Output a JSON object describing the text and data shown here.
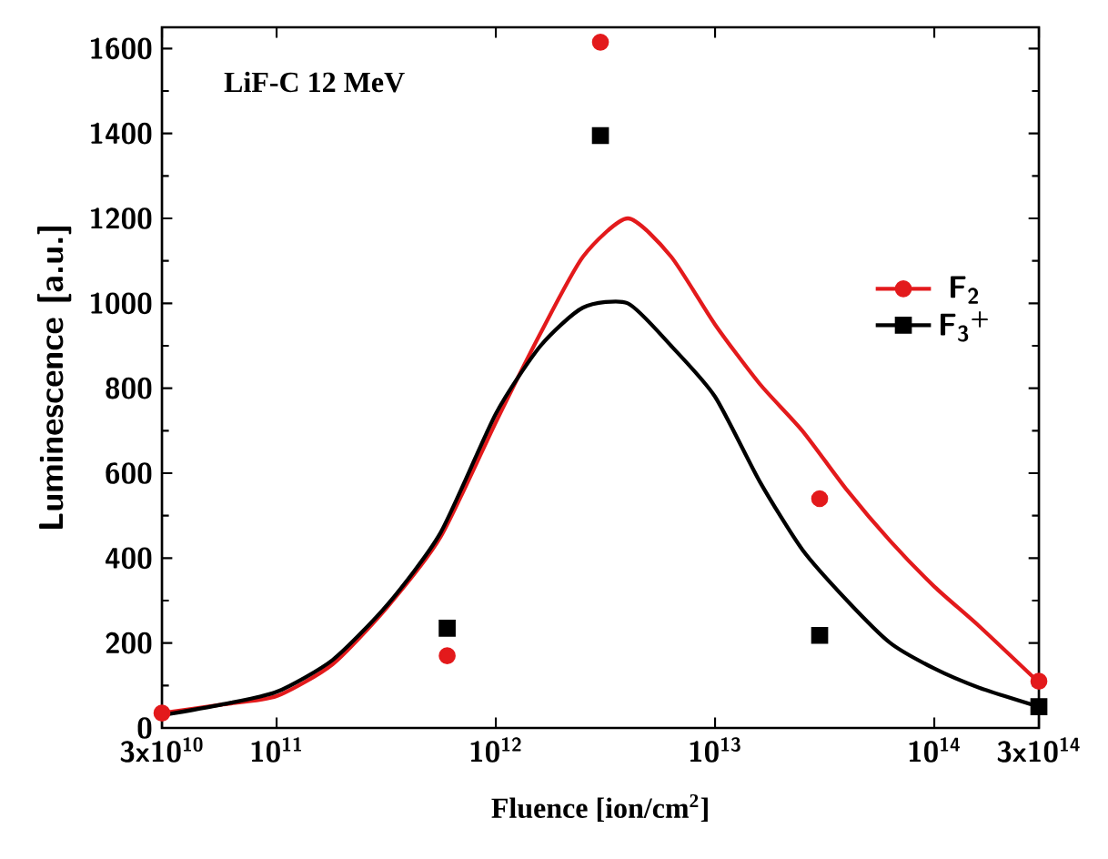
{
  "chart_data": {
    "type": "scatter",
    "xlabel": "Fluence [ion/cm$^{2}$]",
    "ylabel": "Luminescence [a.u.]",
    "annotations": [
      "LiF-C 12 MeV"
    ],
    "log": "x",
    "xlim": [
      30000000000.0,
      300000000000000.0
    ],
    "ylim": [
      0,
      1650
    ],
    "xticks": [
      {
        "value": 30000000000.0,
        "label": "3x10$^{10}$"
      },
      {
        "value": 100000000000.0,
        "label": "10$^{11}$"
      },
      {
        "value": 1000000000000.0,
        "label": "10$^{12}$"
      },
      {
        "value": 10000000000000.0,
        "label": "10$^{13}$"
      },
      {
        "value": 100000000000000.0,
        "label": "10$^{14}$"
      },
      {
        "value": 300000000000000.0,
        "label": "3x10$^{14}$"
      }
    ],
    "yticks": [
      0,
      200,
      400,
      600,
      800,
      1000,
      1200,
      1400,
      1600
    ],
    "legend": "right",
    "grid": false,
    "series": [
      {
        "name": "F$_{2}$",
        "marker": "circle",
        "color": "#e31a1c",
        "x": [
          30000000000.0,
          600000000000.0,
          3000000000000.0,
          30000000000000.0,
          300000000000000.0
        ],
        "values": [
          35,
          170,
          1615,
          540,
          110
        ]
      },
      {
        "name": "F$_{3}$$^{+}$",
        "marker": "square",
        "color": "#000000",
        "x": [
          600000000000.0,
          3000000000000.0,
          30000000000000.0,
          300000000000000.0
        ],
        "values": [
          235,
          1395,
          218,
          50
        ]
      },
      {
        "type": "line",
        "marker": "none",
        "color": "#e31a1c",
        "x": [
          30000000000.0,
          56000000000.0,
          100000000000.0,
          180000000000.0,
          320000000000.0,
          560000000000.0,
          1000000000000.0,
          1600000000000.0,
          2500000000000.0,
          4000000000000.0,
          6300000000000.0,
          10000000000000.0,
          16000000000000.0,
          25000000000000.0,
          40000000000000.0,
          63000000000000.0,
          100000000000000.0,
          160000000000000.0,
          300000000000000.0
        ],
        "values": [
          35,
          55,
          75,
          150,
          285,
          450,
          720,
          930,
          1110,
          1200,
          1110,
          950,
          810,
          700,
          560,
          440,
          333,
          240,
          107
        ]
      },
      {
        "type": "line",
        "marker": "none",
        "color": "#000000",
        "x": [
          30000000000.0,
          56000000000.0,
          100000000000.0,
          180000000000.0,
          320000000000.0,
          560000000000.0,
          1000000000000.0,
          1600000000000.0,
          2500000000000.0,
          4000000000000.0,
          6300000000000.0,
          10000000000000.0,
          16000000000000.0,
          25000000000000.0,
          40000000000000.0,
          63000000000000.0,
          100000000000000.0,
          160000000000000.0,
          300000000000000.0
        ],
        "values": [
          30,
          55,
          85,
          160,
          290,
          460,
          740,
          900,
          990,
          1000,
          900,
          780,
          580,
          420,
          300,
          200,
          140,
          95,
          50
        ]
      }
    ]
  }
}
